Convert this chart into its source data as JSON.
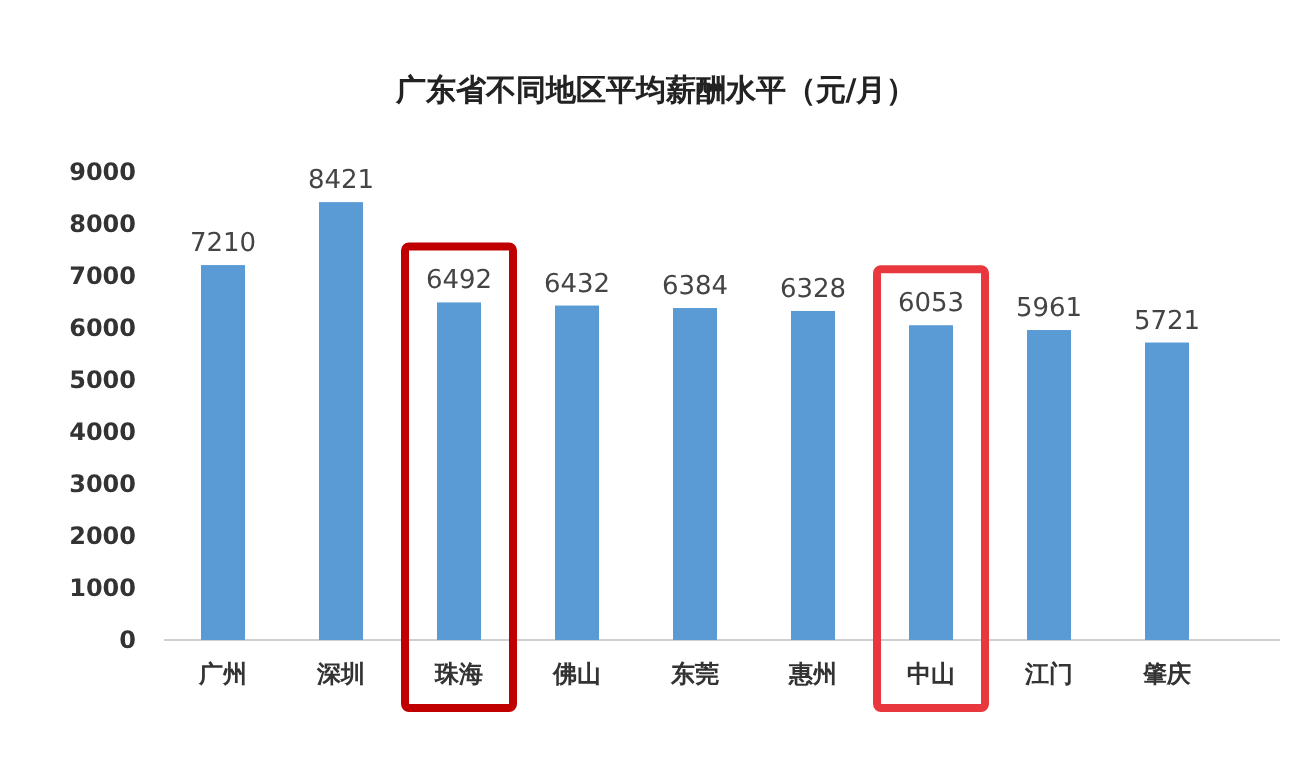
{
  "chart_data": {
    "type": "bar",
    "title": "广东省不同地区平均薪酬水平（元/月）",
    "categories": [
      "广州",
      "深圳",
      "珠海",
      "佛山",
      "东莞",
      "惠州",
      "中山",
      "江门",
      "肇庆"
    ],
    "values": [
      7210,
      8421,
      6492,
      6432,
      6384,
      6328,
      6053,
      5961,
      5721
    ],
    "color": "#5b9bd5",
    "ylim": [
      0,
      9000
    ],
    "yticks": [
      0,
      1000,
      2000,
      3000,
      4000,
      5000,
      6000,
      7000,
      8000,
      9000
    ],
    "grid": false,
    "data_labels": true
  }
}
